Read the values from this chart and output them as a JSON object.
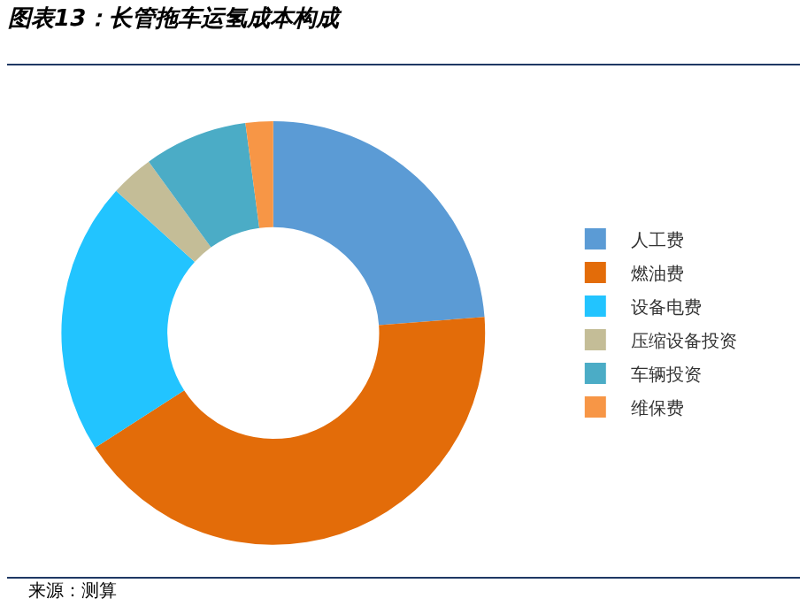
{
  "chart_data": {
    "type": "donut",
    "title": "图表13：长管拖车运氢成本构成",
    "categories": [
      "人工费",
      "燃油费",
      "设备电费",
      "压缩设备投资",
      "车辆投资",
      "维保费"
    ],
    "values": [
      23.8,
      42.1,
      20.8,
      3.3,
      7.9,
      2.1
    ],
    "colors": [
      "#5b9bd5",
      "#e36c09",
      "#22c4ff",
      "#c4bd97",
      "#4bacc6",
      "#f79646"
    ],
    "legend": "right",
    "annotations": [
      "来源：测算"
    ]
  }
}
